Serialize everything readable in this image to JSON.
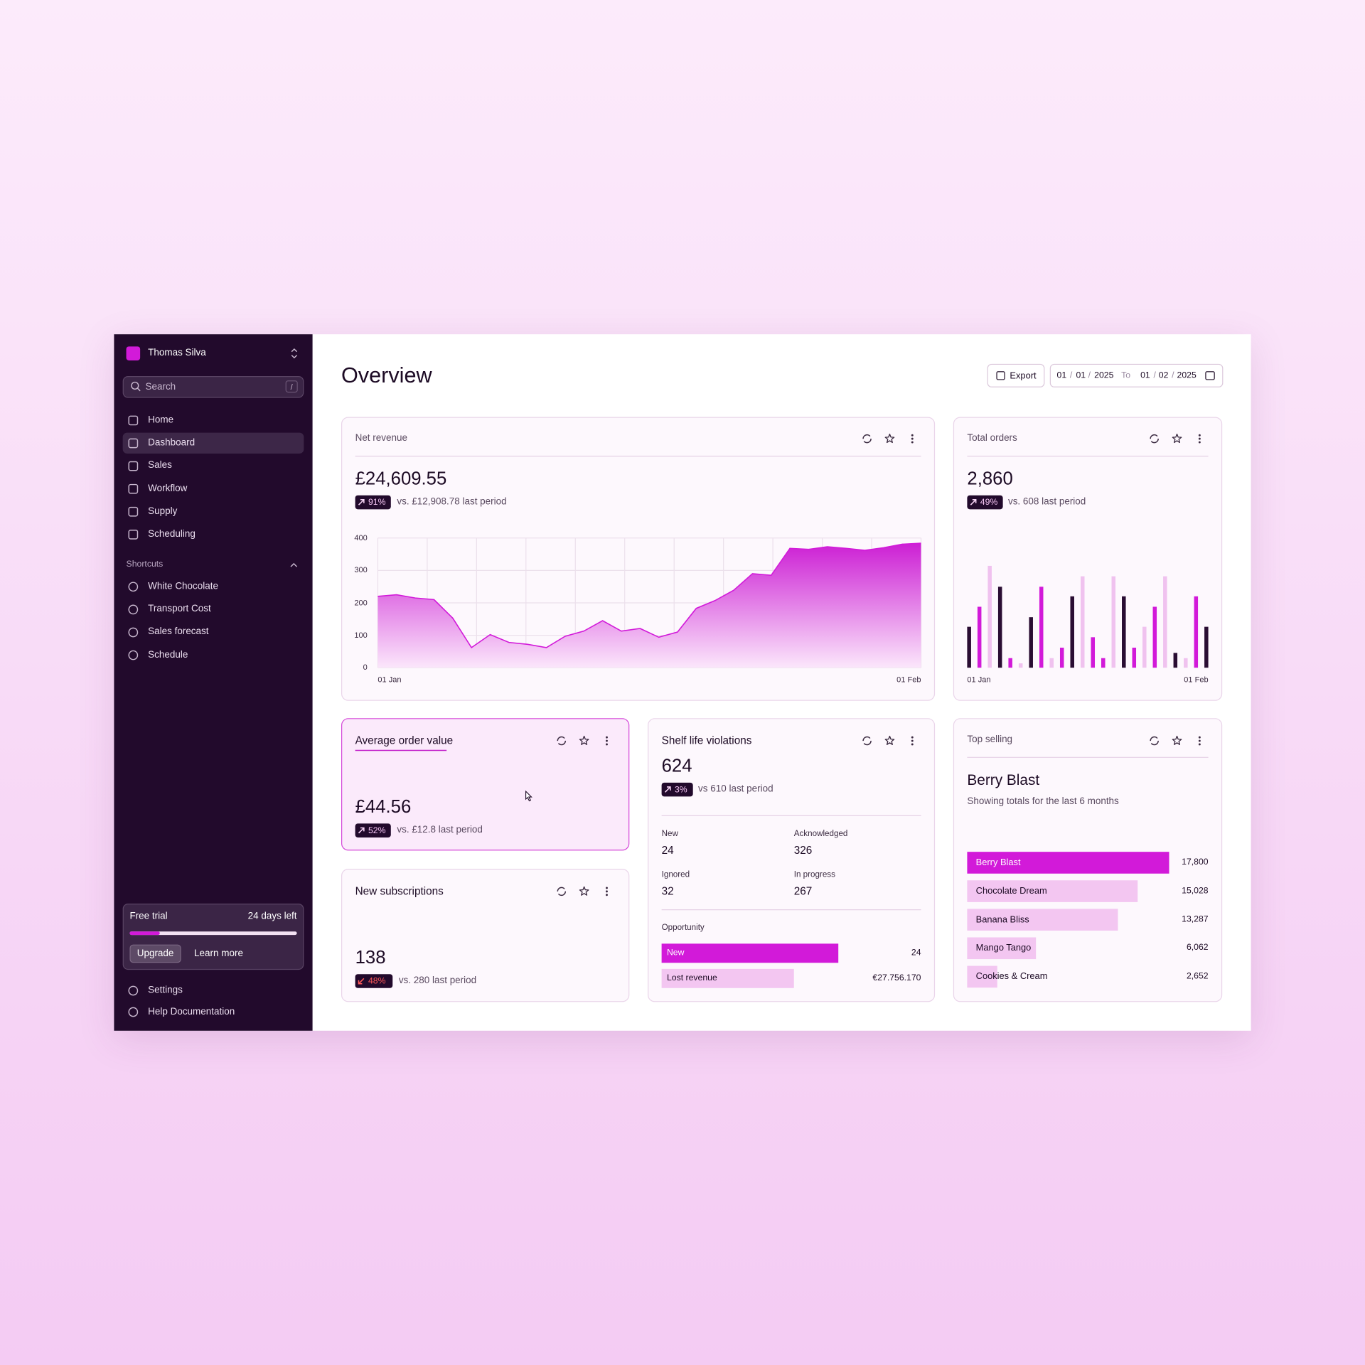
{
  "sidebar": {
    "user": "Thomas Silva",
    "search": "Search",
    "search_key": "/",
    "nav": [
      "Home",
      "Dashboard",
      "Sales",
      "Workflow",
      "Supply",
      "Scheduling"
    ],
    "shortcuts_title": "Shortcuts",
    "shortcuts": [
      "White Chocolate",
      "Transport Cost",
      "Sales forecast",
      "Schedule"
    ],
    "trial": {
      "label": "Free trial",
      "days_left": "24 days left",
      "progress": 18,
      "upgrade": "Upgrade",
      "learn_more": "Learn more"
    },
    "footer": [
      "Settings",
      "Help Documentation"
    ]
  },
  "header": {
    "title": "Overview",
    "export": "Export",
    "date_separator": "/",
    "from": [
      "01",
      "01",
      "2025"
    ],
    "to_label": "To",
    "to": [
      "01",
      "02",
      "2025"
    ]
  },
  "cards": {
    "net_revenue": {
      "value": "£24,609.55",
      "change": "91%",
      "comparison": "vs. £12,908.78 last period"
    },
    "total_orders": {
      "value": "2,860",
      "change": "49%",
      "comparison": "vs. 608 last period"
    },
    "average_order_value": {
      "title": "Average order value",
      "value": "£44.56",
      "change": "52%",
      "comparison": "vs. £12.8 last period"
    },
    "new_subscriptions": {
      "title": "New subscriptions",
      "value": "138",
      "change": "48%",
      "comparison": "vs. 280 last period"
    },
    "shelf_life": {
      "title": "Shelf life violations",
      "value": "624",
      "change": "3%",
      "comparison": "vs 610 last period",
      "stats": [
        {
          "label": "New",
          "value": "24"
        },
        {
          "label": "Acknowledged",
          "value": "326"
        },
        {
          "label": "Ignored",
          "value": "32"
        },
        {
          "label": "In progress",
          "value": "267"
        }
      ],
      "opportunity_title": "Opportunity",
      "opportunity": [
        {
          "label": "New",
          "value": "24"
        },
        {
          "label": "Lost revenue",
          "value": "€27.756.170"
        }
      ]
    },
    "top_selling": {
      "highlight": "Berry Blast",
      "subtitle": "Showing totals for the last 6 months"
    }
  },
  "chart_data": [
    {
      "type": "area",
      "title": "Net revenue",
      "categories": [
        "01 Jan",
        null,
        null,
        null,
        null,
        null,
        null,
        null,
        null,
        null,
        null,
        null,
        null,
        null,
        null,
        null,
        null,
        null,
        null,
        null,
        null,
        null,
        null,
        null,
        null,
        null,
        null,
        null,
        null,
        "01 Feb"
      ],
      "values": [
        220,
        225,
        215,
        210,
        153,
        62,
        102,
        78,
        72,
        62,
        97,
        113,
        145,
        113,
        121,
        94,
        110,
        183,
        207,
        239,
        290,
        285,
        368,
        365,
        373,
        368,
        362,
        370,
        381,
        384
      ],
      "color": "#d21ad9",
      "ylim": [
        0,
        400
      ],
      "yticks": [
        0,
        100,
        200,
        300,
        400
      ],
      "grid": true
    },
    {
      "type": "bar",
      "title": "Total orders",
      "categories": [
        "01 Jan",
        null,
        null,
        null,
        null,
        null,
        null,
        null,
        null,
        null,
        null,
        null,
        null,
        null,
        null,
        null,
        null,
        null,
        null,
        null,
        null,
        null,
        null,
        "01 Feb"
      ],
      "values": [
        47,
        70,
        117,
        93,
        11,
        5,
        58,
        93,
        11,
        23,
        82,
        105,
        35,
        11,
        105,
        82,
        23,
        47,
        70,
        105,
        17,
        11,
        82,
        47
      ],
      "colors": [
        "#2a0d33",
        "#d21ad9",
        "#f0c2ef",
        "#2a0d33",
        "#d21ad9",
        "#f0c2ef",
        "#2a0d33",
        "#d21ad9",
        "#f0c2ef",
        "#d21ad9",
        "#2a0d33",
        "#f0c2ef",
        "#d21ad9",
        "#d21ad9",
        "#f0c2ef",
        "#2a0d33",
        "#d21ad9",
        "#f0c2ef",
        "#d21ad9",
        "#f0c2ef",
        "#2a0d33",
        "#f0c2ef",
        "#d21ad9",
        "#2a0d33"
      ]
    },
    {
      "type": "hbar",
      "title": "Top selling",
      "categories": [
        "Berry Blast",
        "Chocolate Dream",
        "Banana Bliss",
        "Mango Tango",
        "Cookies & Cream"
      ],
      "values": [
        17800,
        15028,
        13287,
        6062,
        2652
      ],
      "value_labels": [
        "17,800",
        "15,028",
        "13,287",
        "6,062",
        "2,652"
      ],
      "colors": [
        "#d21ad9",
        "#f3c6f1",
        "#f3c6f1",
        "#f3c6f1",
        "#f3c6f1"
      ]
    }
  ]
}
